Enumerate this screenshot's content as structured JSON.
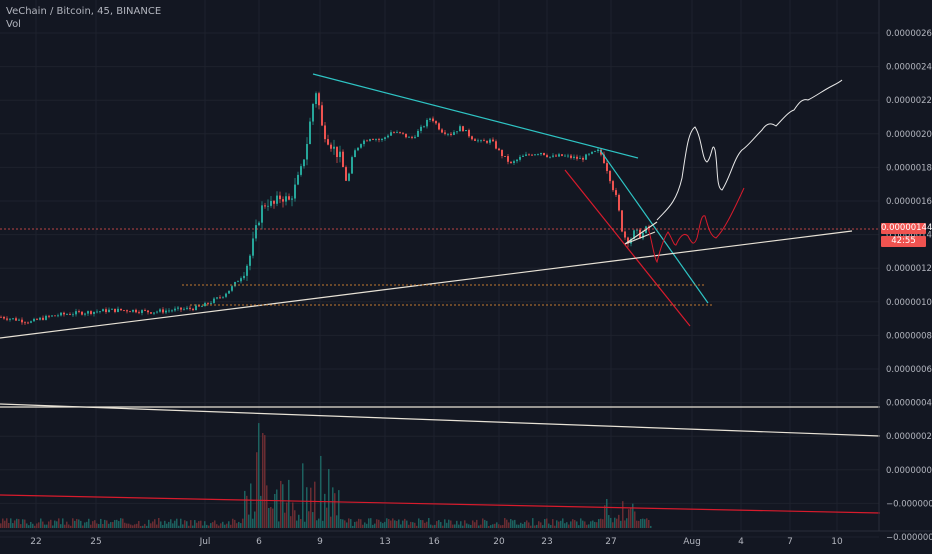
{
  "header": {
    "symbol_line": "VeChain / Bitcoin, 45, BINANCE",
    "sub_label": "Vol"
  },
  "colors": {
    "background": "#131722",
    "grid": "#1e222d",
    "text": "#b2b5be",
    "candle_up": "#26a69a",
    "candle_down": "#ef5350",
    "trend_cyan": "#2ec4c4",
    "trend_red": "#d81b2c",
    "trend_white": "#e8e2d6",
    "level_orange": "#c07a30",
    "price_line": "#ef5350",
    "price_tag_bg": "#ef5350"
  },
  "chart_data": {
    "type": "candlestick",
    "y_axis_ticks": [
      "0.00000260",
      "0.00000240",
      "0.00000220",
      "0.00000200",
      "0.00000180",
      "0.00000160",
      "0.00000140",
      "0.00000120",
      "0.00000100",
      "0.00000080",
      "0.00000060",
      "0.00000040",
      "0.00000020",
      "0.00000000",
      "−0.00000000",
      "−0.00000020"
    ],
    "x_axis_ticks": [
      "22",
      "25",
      "Jul",
      "6",
      "9",
      "13",
      "16",
      "20",
      "23",
      "27",
      "Aug",
      "4",
      "7",
      "10"
    ],
    "ylim": [
      -3e-07,
      2.8e-06
    ],
    "current_price": "0.00000144",
    "countdown": "42:55",
    "close_path": [
      [
        0,
        9.1e-07
      ],
      [
        10,
        9e-07
      ],
      [
        20,
        8.9e-07
      ],
      [
        30,
        8.8e-07
      ],
      [
        40,
        9e-07
      ],
      [
        55,
        9.2e-07
      ],
      [
        70,
        9.3e-07
      ],
      [
        90,
        9.4e-07
      ],
      [
        110,
        9.5e-07
      ],
      [
        130,
        9.5e-07
      ],
      [
        150,
        9.4e-07
      ],
      [
        170,
        9.5e-07
      ],
      [
        190,
        9.6e-07
      ],
      [
        200,
        9.7e-07
      ],
      [
        210,
        1e-06
      ],
      [
        220,
        1.03e-06
      ],
      [
        230,
        1.08e-06
      ],
      [
        240,
        1.15e-06
      ],
      [
        248,
        1.25e-06
      ],
      [
        254,
        1.4e-06
      ],
      [
        260,
        1.55e-06
      ],
      [
        266,
        1.6e-06
      ],
      [
        272,
        1.57e-06
      ],
      [
        280,
        1.63e-06
      ],
      [
        288,
        1.6e-06
      ],
      [
        294,
        1.68e-06
      ],
      [
        300,
        1.78e-06
      ],
      [
        306,
        1.95e-06
      ],
      [
        312,
        2.18e-06
      ],
      [
        316,
        2.28e-06
      ],
      [
        320,
        2.05e-06
      ],
      [
        326,
        1.98e-06
      ],
      [
        332,
        1.92e-06
      ],
      [
        340,
        1.85e-06
      ],
      [
        346,
        1.7e-06
      ],
      [
        352,
        1.88e-06
      ],
      [
        360,
        1.95e-06
      ],
      [
        370,
        1.98e-06
      ],
      [
        380,
        1.96e-06
      ],
      [
        390,
        2.01e-06
      ],
      [
        400,
        2e-06
      ],
      [
        410,
        1.97e-06
      ],
      [
        420,
        2.03e-06
      ],
      [
        430,
        2.1e-06
      ],
      [
        440,
        2.02e-06
      ],
      [
        450,
        2e-06
      ],
      [
        460,
        2.04e-06
      ],
      [
        470,
        1.98e-06
      ],
      [
        480,
        1.95e-06
      ],
      [
        490,
        1.96e-06
      ],
      [
        500,
        1.88e-06
      ],
      [
        510,
        1.82e-06
      ],
      [
        520,
        1.86e-06
      ],
      [
        530,
        1.88e-06
      ],
      [
        540,
        1.89e-06
      ],
      [
        550,
        1.86e-06
      ],
      [
        560,
        1.87e-06
      ],
      [
        570,
        1.86e-06
      ],
      [
        580,
        1.85e-06
      ],
      [
        590,
        1.88e-06
      ],
      [
        598,
        1.9e-06
      ],
      [
        604,
        1.83e-06
      ],
      [
        610,
        1.72e-06
      ],
      [
        616,
        1.6e-06
      ],
      [
        622,
        1.4e-06
      ],
      [
        628,
        1.36e-06
      ],
      [
        634,
        1.42e-06
      ],
      [
        640,
        1.39e-06
      ],
      [
        646,
        1.44e-06
      ],
      [
        650,
        1.44e-06
      ]
    ]
  }
}
